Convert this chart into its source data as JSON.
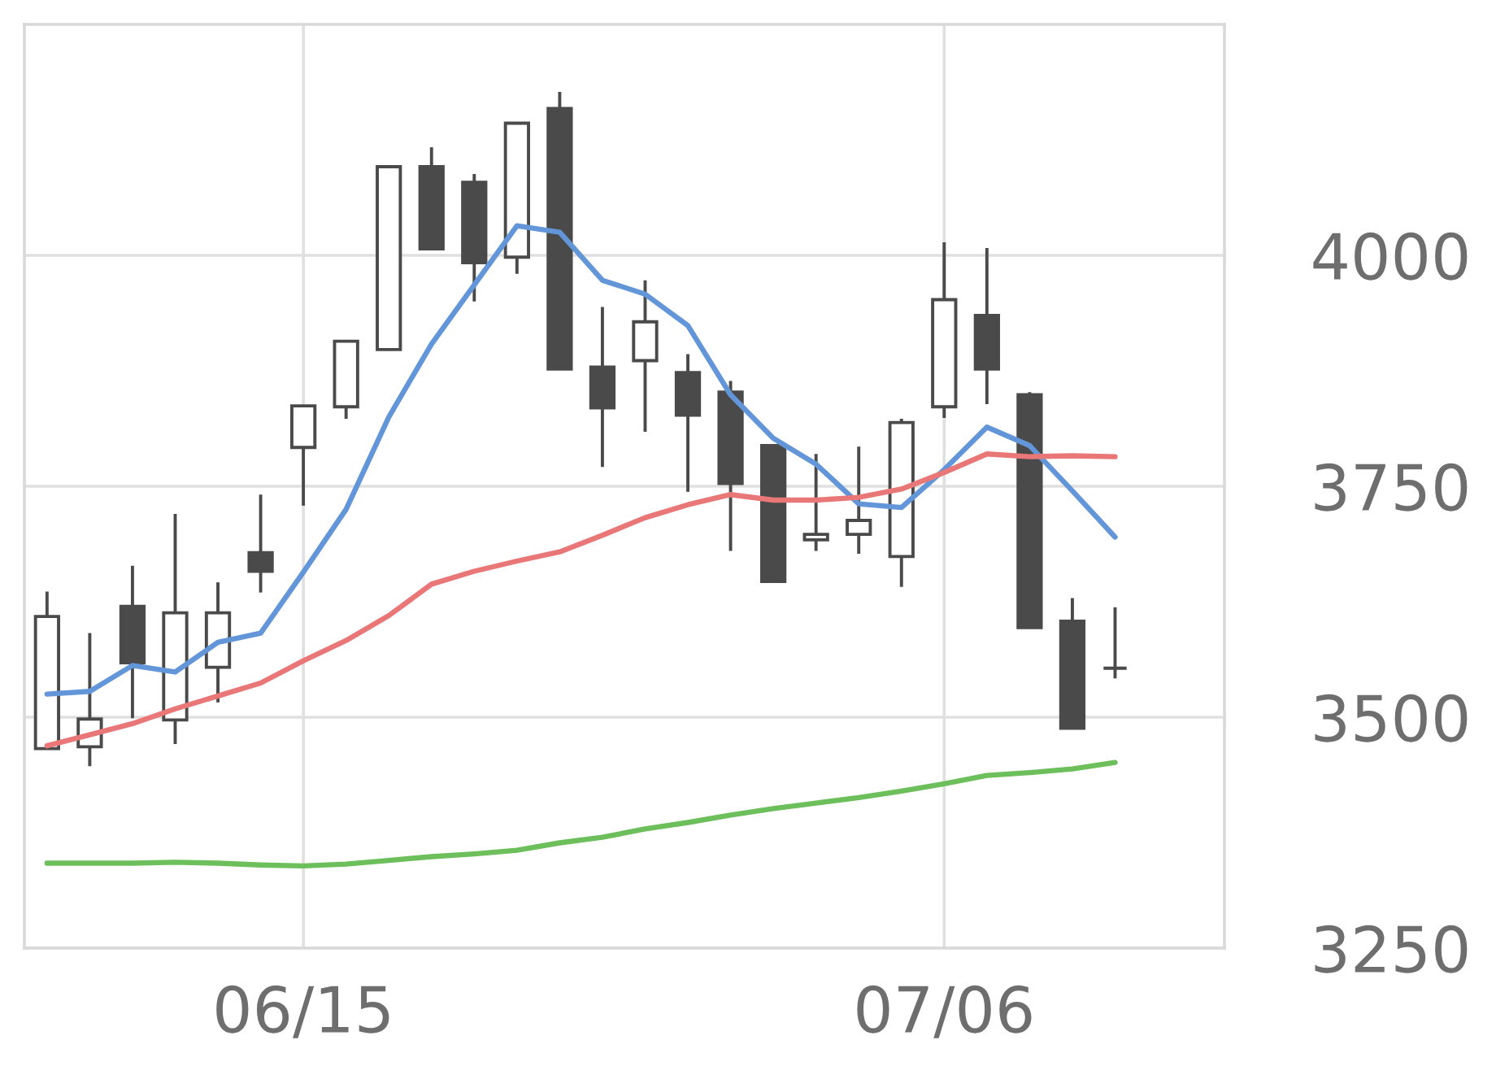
{
  "chart_data": {
    "type": "candlestick",
    "categories": [
      null,
      null,
      null,
      null,
      null,
      null,
      "06/15",
      null,
      null,
      null,
      null,
      null,
      null,
      null,
      null,
      null,
      null,
      null,
      null,
      null,
      null,
      "07/06",
      null,
      null,
      null,
      null
    ],
    "ohlc": [
      [
        3466,
        3636,
        3466,
        3609
      ],
      [
        3468,
        3591,
        3447,
        3498
      ],
      [
        3620,
        3664,
        3499,
        3559
      ],
      [
        3497,
        3720,
        3471,
        3613
      ],
      [
        3554,
        3646,
        3516,
        3613
      ],
      [
        3678,
        3741,
        3635,
        3658
      ],
      [
        3792,
        3837,
        3729,
        3837
      ],
      [
        3836,
        3907,
        3823,
        3907
      ],
      [
        3898,
        4096,
        3898,
        4096
      ],
      [
        4096,
        4117,
        4007,
        4007
      ],
      [
        4079,
        4088,
        3950,
        3992
      ],
      [
        3998,
        4143,
        3980,
        4143
      ],
      [
        4159,
        4177,
        3877,
        3877
      ],
      [
        3879,
        3944,
        3771,
        3835
      ],
      [
        3886,
        3973,
        3809,
        3928
      ],
      [
        3873,
        3893,
        3744,
        3827
      ],
      [
        3852,
        3864,
        3680,
        3753
      ],
      [
        3794,
        3794,
        3647,
        3647
      ],
      [
        3692,
        3785,
        3680,
        3698
      ],
      [
        3698,
        3793,
        3677,
        3713
      ],
      [
        3674,
        3823,
        3641,
        3819
      ],
      [
        3836,
        4014,
        3824,
        3952
      ],
      [
        3935,
        4008,
        3839,
        3877
      ],
      [
        3849,
        3852,
        3597,
        3597
      ],
      [
        3604,
        3629,
        3488,
        3488
      ],
      [
        3553,
        3619,
        3542,
        3553
      ]
    ],
    "color": "#4a4a4a",
    "colors": [
      "#ffffff",
      "#ffffff",
      "#4a4a4a",
      "#ffffff",
      "#ffffff",
      "#4a4a4a",
      "#ffffff",
      "#ffffff",
      "#ffffff",
      "#4a4a4a",
      "#4a4a4a",
      "#ffffff",
      "#4a4a4a",
      "#4a4a4a",
      "#ffffff",
      "#4a4a4a",
      "#4a4a4a",
      "#4a4a4a",
      "#ffffff",
      "#ffffff",
      "#ffffff",
      "#ffffff",
      "#4a4a4a",
      "#4a4a4a",
      "#4a4a4a",
      "#4a4a4a"
    ],
    "series": [
      {
        "type": "line",
        "color": "#6396d9",
        "values": [
          3525,
          3528,
          3556,
          3549,
          3581,
          3591,
          3657,
          3725,
          3825,
          3904,
          3968,
          4032,
          4025,
          3973,
          3958,
          3924,
          3849,
          3802,
          3774,
          3731,
          3727,
          3768,
          3814,
          3794,
          3745,
          3695
        ]
      },
      {
        "type": "line",
        "color": "#e97777",
        "values": [
          3469,
          3481,
          3493,
          3509,
          3523,
          3537,
          3561,
          3583,
          3610,
          3644,
          3658,
          3669,
          3679,
          3697,
          3716,
          3730,
          3741,
          3735,
          3735,
          3738,
          3747,
          3765,
          3785,
          3782,
          3783,
          3782
        ]
      },
      {
        "type": "line",
        "color": "#6cbf5b",
        "values": [
          3342,
          3342,
          3342,
          3343,
          3342,
          3340,
          3339,
          3341,
          3345,
          3349,
          3352,
          3356,
          3364,
          3370,
          3379,
          3386,
          3394,
          3401,
          3407,
          3413,
          3420,
          3428,
          3437,
          3440,
          3444,
          3451
        ]
      }
    ],
    "ylim": [
      3250,
      4250
    ],
    "yticks": [
      3250,
      3500,
      3750,
      4000
    ],
    "grid": true
  }
}
